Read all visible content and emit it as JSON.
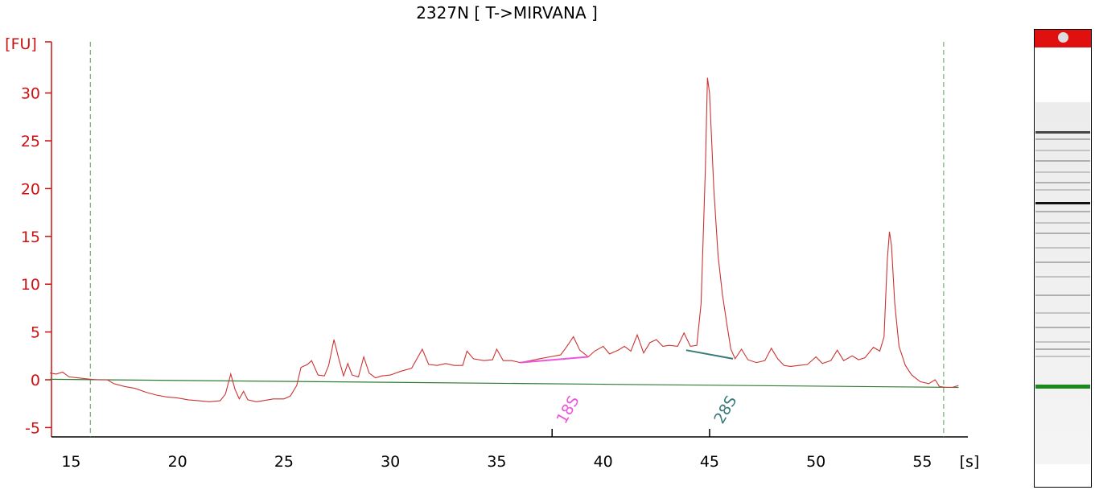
{
  "chart_data": {
    "type": "line",
    "title": "2327N  [ T->MIRVANA ]",
    "ylabel": "[FU]",
    "xlabel": "[s]",
    "xlim": [
      14,
      56.8
    ],
    "ylim": [
      -6,
      35
    ],
    "x_ticks": [
      15,
      20,
      25,
      30,
      35,
      40,
      45,
      50,
      55
    ],
    "y_ticks": [
      -5,
      0,
      5,
      10,
      15,
      20,
      25,
      30
    ],
    "markers": [
      {
        "label": "18S",
        "x": 37.6,
        "color": "#ee55dd"
      },
      {
        "label": "28S",
        "x": 45.0,
        "color": "#3a7a7a"
      }
    ],
    "vlines": [
      15.9,
      56.0
    ],
    "baseline": {
      "x": [
        14,
        56.7
      ],
      "y": [
        0.05,
        -0.8
      ]
    },
    "peak_baselines": [
      {
        "label": "18S",
        "x": [
          36.1,
          39.3
        ],
        "y": [
          1.8,
          2.4
        ],
        "color": "#ee55dd"
      },
      {
        "label": "28S",
        "x": [
          43.9,
          46.1
        ],
        "y": [
          3.1,
          2.2
        ],
        "color": "#3a7a7a"
      }
    ],
    "series": [
      {
        "color": "#cc3333",
        "points": [
          [
            14.0,
            0.7
          ],
          [
            14.3,
            0.6
          ],
          [
            14.6,
            0.8
          ],
          [
            14.9,
            0.3
          ],
          [
            15.3,
            0.2
          ],
          [
            15.7,
            0.1
          ],
          [
            16.2,
            0.0
          ],
          [
            16.7,
            0.0
          ],
          [
            17.0,
            -0.4
          ],
          [
            17.5,
            -0.7
          ],
          [
            18.0,
            -0.9
          ],
          [
            18.5,
            -1.3
          ],
          [
            19.0,
            -1.6
          ],
          [
            19.5,
            -1.8
          ],
          [
            20.0,
            -1.9
          ],
          [
            20.5,
            -2.1
          ],
          [
            21.0,
            -2.2
          ],
          [
            21.5,
            -2.3
          ],
          [
            22.0,
            -2.2
          ],
          [
            22.25,
            -1.5
          ],
          [
            22.5,
            0.6
          ],
          [
            22.7,
            -1.0
          ],
          [
            22.9,
            -2.0
          ],
          [
            23.1,
            -1.2
          ],
          [
            23.3,
            -2.1
          ],
          [
            23.7,
            -2.3
          ],
          [
            24.0,
            -2.2
          ],
          [
            24.5,
            -2.0
          ],
          [
            25.0,
            -2.0
          ],
          [
            25.3,
            -1.7
          ],
          [
            25.6,
            -0.6
          ],
          [
            25.8,
            1.3
          ],
          [
            26.1,
            1.6
          ],
          [
            26.3,
            2.0
          ],
          [
            26.6,
            0.5
          ],
          [
            26.9,
            0.4
          ],
          [
            27.1,
            1.5
          ],
          [
            27.35,
            4.2
          ],
          [
            27.6,
            2.0
          ],
          [
            27.8,
            0.4
          ],
          [
            28.0,
            1.7
          ],
          [
            28.2,
            0.5
          ],
          [
            28.5,
            0.3
          ],
          [
            28.75,
            2.4
          ],
          [
            29.0,
            0.7
          ],
          [
            29.3,
            0.2
          ],
          [
            29.6,
            0.4
          ],
          [
            30.0,
            0.5
          ],
          [
            30.5,
            0.9
          ],
          [
            31.0,
            1.2
          ],
          [
            31.5,
            3.2
          ],
          [
            31.8,
            1.6
          ],
          [
            32.2,
            1.5
          ],
          [
            32.6,
            1.7
          ],
          [
            33.0,
            1.5
          ],
          [
            33.4,
            1.5
          ],
          [
            33.6,
            3.0
          ],
          [
            33.9,
            2.2
          ],
          [
            34.4,
            2.0
          ],
          [
            34.8,
            2.1
          ],
          [
            35.0,
            3.2
          ],
          [
            35.3,
            2.0
          ],
          [
            35.7,
            2.0
          ],
          [
            36.1,
            1.8
          ],
          [
            36.6,
            2.0
          ],
          [
            37.0,
            2.2
          ],
          [
            37.5,
            2.4
          ],
          [
            38.0,
            2.6
          ],
          [
            38.3,
            3.5
          ],
          [
            38.6,
            4.5
          ],
          [
            38.9,
            3.1
          ],
          [
            39.3,
            2.4
          ],
          [
            39.6,
            3.0
          ],
          [
            40.0,
            3.5
          ],
          [
            40.3,
            2.7
          ],
          [
            40.7,
            3.1
          ],
          [
            41.0,
            3.5
          ],
          [
            41.3,
            3.0
          ],
          [
            41.6,
            4.7
          ],
          [
            41.9,
            2.8
          ],
          [
            42.2,
            3.9
          ],
          [
            42.5,
            4.2
          ],
          [
            42.8,
            3.5
          ],
          [
            43.1,
            3.6
          ],
          [
            43.5,
            3.5
          ],
          [
            43.8,
            4.9
          ],
          [
            44.1,
            3.5
          ],
          [
            44.4,
            3.6
          ],
          [
            44.6,
            8.0
          ],
          [
            44.8,
            22.0
          ],
          [
            44.9,
            31.6
          ],
          [
            45.0,
            30.0
          ],
          [
            45.2,
            20.0
          ],
          [
            45.4,
            13.0
          ],
          [
            45.6,
            9.0
          ],
          [
            45.8,
            6.0
          ],
          [
            46.0,
            3.2
          ],
          [
            46.2,
            2.2
          ],
          [
            46.5,
            3.2
          ],
          [
            46.8,
            2.1
          ],
          [
            47.2,
            1.8
          ],
          [
            47.6,
            2.0
          ],
          [
            47.9,
            3.3
          ],
          [
            48.2,
            2.2
          ],
          [
            48.5,
            1.5
          ],
          [
            48.8,
            1.4
          ],
          [
            49.2,
            1.5
          ],
          [
            49.6,
            1.6
          ],
          [
            50.0,
            2.4
          ],
          [
            50.3,
            1.7
          ],
          [
            50.7,
            2.0
          ],
          [
            51.0,
            3.1
          ],
          [
            51.3,
            2.0
          ],
          [
            51.7,
            2.5
          ],
          [
            52.0,
            2.1
          ],
          [
            52.3,
            2.3
          ],
          [
            52.7,
            3.4
          ],
          [
            53.0,
            3.0
          ],
          [
            53.2,
            4.5
          ],
          [
            53.35,
            12.5
          ],
          [
            53.45,
            15.5
          ],
          [
            53.55,
            14.0
          ],
          [
            53.7,
            8.0
          ],
          [
            53.9,
            3.5
          ],
          [
            54.2,
            1.5
          ],
          [
            54.5,
            0.5
          ],
          [
            54.9,
            -0.2
          ],
          [
            55.3,
            -0.4
          ],
          [
            55.6,
            0.0
          ],
          [
            55.8,
            -0.7
          ],
          [
            56.1,
            -0.8
          ],
          [
            56.4,
            -0.8
          ],
          [
            56.7,
            -0.6
          ]
        ]
      }
    ],
    "gel_bands": [
      {
        "pos": 0.08,
        "color": "#444444"
      },
      {
        "pos": 0.275,
        "color": "#111111"
      },
      {
        "pos": 0.78,
        "color": "#1a8a1a"
      }
    ]
  }
}
